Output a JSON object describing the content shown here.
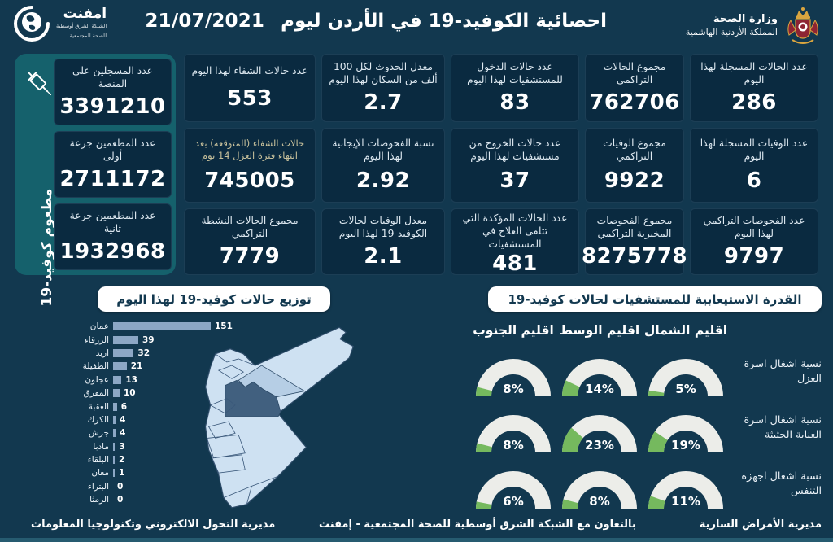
{
  "header": {
    "title": "احصائية الكوفيد-19 في الأردن ليوم",
    "date": "21/07/2021",
    "ministry": {
      "line1": "وزارة الصحة",
      "line2": "المملكة الأردنية الهاشمية"
    },
    "emphnet": {
      "name": "امفنت",
      "line1": "الشبكة الشرق أوسطية",
      "line2": "للصحة المجتمعية"
    }
  },
  "vaccination": {
    "side_label": "مطعوم كوفيد-19",
    "cards": [
      {
        "label": "عدد المسجلين على المنصة",
        "value": "3391210"
      },
      {
        "label": "عدد المطعمين جرعة أولى",
        "value": "2711172"
      },
      {
        "label": "عدد المطعمين جرعة ثانية",
        "value": "1932968"
      }
    ]
  },
  "stat_columns": [
    {
      "cards": [
        {
          "label": "عدد حالات الشفاء لهذا اليوم",
          "value": "553"
        },
        {
          "label": "حالات الشفاء (المتوقعة) بعد انتهاء فترة العزل 14 يوم",
          "value": "745005",
          "tint": true
        },
        {
          "label": "مجموع الحالات النشطة التراكمي",
          "value": "7779"
        }
      ]
    },
    {
      "cards": [
        {
          "label": "معدل الحدوث لكل 100 ألف من السكان لهذا اليوم",
          "value": "2.7"
        },
        {
          "label": "نسبة الفحوصات الإيجابية لهذا اليوم",
          "value": "2.92"
        },
        {
          "label": "معدل الوفيات لحالات الكوفيد-19 لهذا اليوم",
          "value": "2.1"
        }
      ]
    },
    {
      "cards": [
        {
          "label": "عدد حالات الدخول للمستشفيات لهذا اليوم",
          "value": "83"
        },
        {
          "label": "عدد حالات الخروج من مستشفيات لهذا اليوم",
          "value": "37"
        },
        {
          "label": "عدد الحالات المؤكدة التي تتلقى العلاج في المستشفيات",
          "value": "481"
        }
      ]
    },
    {
      "cards": [
        {
          "label": "مجموع الحالات التراكمي",
          "value": "762706"
        },
        {
          "label": "مجموع الوفيات التراكمي",
          "value": "9922"
        },
        {
          "label": "مجموع الفحوصات المخبرية التراكمي",
          "value": "8275778"
        }
      ]
    },
    {
      "cards": [
        {
          "label": "عدد الحالات المسجلة لهذا اليوم",
          "value": "286"
        },
        {
          "label": "عدد الوفيات المسجلة لهذا اليوم",
          "value": "6"
        },
        {
          "label": "عدد الفحوصات التراكمي لهذا اليوم",
          "value": "9797"
        }
      ]
    }
  ],
  "chart_data": [
    {
      "type": "bar",
      "title": "توزيع حالات كوفيد-19 لهذا اليوم",
      "orientation": "horizontal",
      "categories": [
        "عمان",
        "الزرقاء",
        "اربد",
        "الطفيلة",
        "عجلون",
        "المفرق",
        "العقبة",
        "الكرك",
        "جرش",
        "مادبا",
        "البلقاء",
        "معان",
        "البتراء",
        "الرمثا"
      ],
      "values": [
        151,
        39,
        32,
        21,
        13,
        10,
        6,
        4,
        4,
        3,
        2,
        1,
        0,
        0
      ],
      "xlim": [
        0,
        151
      ],
      "bar_color": "#8CA7C5"
    },
    {
      "type": "gauge-grid",
      "title": "القدرة الاستيعابية للمستشفيات لحالات كوفيد-19",
      "unit": "%",
      "columns": [
        "اقليم الجنوب",
        "اقليم الوسط",
        "اقليم الشمال"
      ],
      "rows": [
        {
          "label": "نسبة اشغال اسرة العزل",
          "values": [
            8,
            14,
            5
          ]
        },
        {
          "label": "نسبة اشغال اسرة العناية الحثيثة",
          "values": [
            8,
            23,
            19
          ]
        },
        {
          "label": "نسبة اشغال اجهزة التنفس",
          "values": [
            6,
            8,
            11
          ]
        }
      ],
      "gauge_color": "#75B95E",
      "track_color": "#ECEDE9"
    }
  ],
  "footer": {
    "right": "مديرية الأمراض السارية",
    "center": "بالتعاون مع الشبكة الشرق أوسطية للصحة المجتمعية - إمفنت",
    "left": "مديرية التحول الالكتروني وتكنولوجيا المعلومات"
  },
  "colors": {
    "background": "#12384F",
    "card": "#0A2A40",
    "sidebar_teal": "#15616C",
    "bar": "#8CA7C5",
    "gauge_green": "#75B95E",
    "gauge_track": "#ECEDE9",
    "map_light": "#CEE1F2",
    "map_medium": "#B6CEE5",
    "map_highlight": "#41607F"
  }
}
